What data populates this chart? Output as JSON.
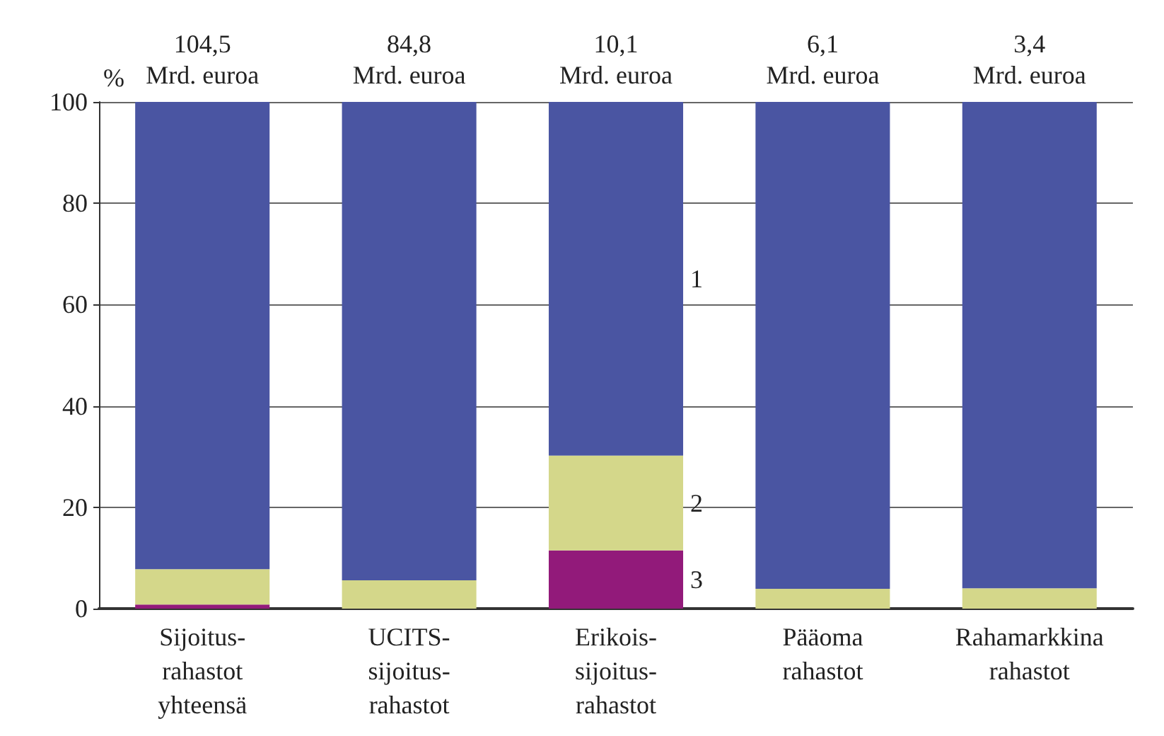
{
  "chart_data": {
    "type": "bar",
    "stacked": true,
    "ylabel": "%",
    "categories": [
      "Sijoitus-\nrahastot\nyhteensä",
      "UCITS-\nsijoitus-\nrahastot",
      "Erikois-\nsijoitus-\nrahastot",
      "Pääoma\nrahastot",
      "Rahamarkkina\nrahastot"
    ],
    "series": [
      {
        "name": "3",
        "color": "#921a7a",
        "values": [
          0.8,
          0,
          11.5,
          0,
          0
        ]
      },
      {
        "name": "2",
        "color": "#d4d78a",
        "values": [
          7.0,
          5.6,
          18.7,
          3.9,
          4.0
        ]
      },
      {
        "name": "1",
        "color": "#4a55a2",
        "values": [
          92.2,
          94.4,
          69.8,
          96.1,
          96.0
        ]
      }
    ],
    "ylim": [
      0,
      100
    ],
    "yticks": [
      0,
      20,
      40,
      60,
      80,
      100
    ],
    "grid": "y",
    "annotations": [
      "104,5\nMrd. euroa",
      "84,8\nMrd. euroa",
      "10,1\nMrd. euroa",
      "6,1\nMrd. euroa",
      "3,4\nMrd. euroa"
    ]
  }
}
